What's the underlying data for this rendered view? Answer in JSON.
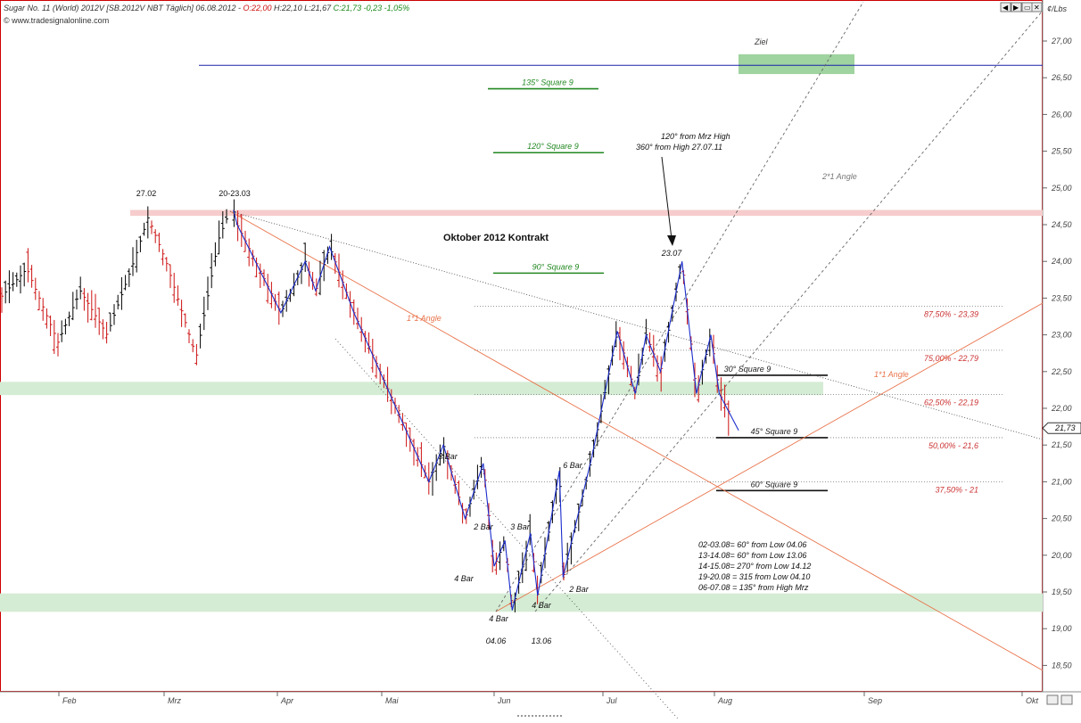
{
  "header": {
    "title": "Sugar No. 11 (World) 2012V [SB.2012V NBT Täglich] 06.08.2012 -",
    "ohlc_open": "O:22,00",
    "ohlc_high_low": "H:22,10 L:21,67",
    "ohlc_close": "C:21,73 -0,23 -1,05%",
    "source": "© www.tradesignalonline.com",
    "unit": "¢/Lbs",
    "window_buttons": [
      "◀",
      "▶",
      "▭",
      "✕"
    ]
  },
  "colors": {
    "bull_bar": "#000000",
    "bear_bar": "#cc1111",
    "zigzag": "#1a2ccc",
    "angle_line": "#e8734a",
    "green_zone": "#d4ecd4",
    "red_zone": "#f6cccc",
    "target_box": "#9fd39f",
    "fib_line": "#cc3333",
    "square9_label": "#228822",
    "border": "#cc0000"
  },
  "chart_data": {
    "type": "ohlc",
    "title": "Oktober 2012 Kontrakt",
    "y_unit": "¢/Lbs",
    "ylim": [
      18.2,
      27.4
    ],
    "y_ticks": [
      "18,50",
      "19,00",
      "19,50",
      "20,00",
      "20,50",
      "21,00",
      "21,50",
      "22,00",
      "22,50",
      "23,00",
      "23,50",
      "24,00",
      "24,50",
      "25,00",
      "25,50",
      "26,00",
      "26,50",
      "27,00"
    ],
    "x_ticks": [
      "Feb",
      "Mrz",
      "Apr",
      "Mai",
      "Jun",
      "Jul",
      "Aug",
      "Sep",
      "Okt"
    ],
    "last_price": "21,73",
    "zones": [
      {
        "name": "resistance-zone",
        "from": 24.62,
        "to": 24.7,
        "color": "red"
      },
      {
        "name": "mid-zone",
        "from": 22.18,
        "to": 22.36,
        "color": "green"
      },
      {
        "name": "support-zone",
        "from": 19.23,
        "to": 19.48,
        "color": "green"
      }
    ],
    "target": {
      "label": "Ziel",
      "level": 26.67
    },
    "fib_levels": [
      {
        "label": "87,50% - 23,39",
        "value": 23.39
      },
      {
        "label": "75,00% - 22,79",
        "value": 22.79
      },
      {
        "label": "62,50% - 22,19",
        "value": 22.19
      },
      {
        "label": "50,00% - 21,6",
        "value": 21.6
      },
      {
        "label": "37,50% - 21",
        "value": 21.0
      }
    ],
    "square9_levels": [
      {
        "label": "135° Square 9",
        "value": 26.35
      },
      {
        "label": "120° Square 9",
        "value": 25.48
      },
      {
        "label": "90° Square 9",
        "value": 23.84
      },
      {
        "label": "30° Square 9",
        "value": 22.45
      },
      {
        "label": "45° Square 9",
        "value": 21.6
      },
      {
        "label": "60° Square 9",
        "value": 20.88
      }
    ],
    "angles": [
      "1*1 Angle",
      "1*1 Angle",
      "2*1 Angle"
    ],
    "annotations": {
      "high_mrz": "27.02",
      "high_2023": "20-23.03",
      "high_jul": "23.07",
      "arrow_note": [
        "120° from Mrz High",
        "360° from High 27.07.11"
      ],
      "low_1": "04.06",
      "low_2": "13.06",
      "bar_counts": [
        "3 Bar",
        "2 Bar",
        "4 Bar",
        "3 Bar",
        "4 Bar",
        "4 Bar",
        "6 Bar",
        "2 Bar"
      ],
      "cycle_notes": [
        "02-03.08= 60° from Low 04.06",
        "13-14.08= 60° from Low 13.06",
        "14-15.08= 270° from Low 14.12",
        "19-20.08 = 315 from Low 04.10",
        "06-07.08 = 135° from High Mrz"
      ]
    },
    "zigzag_points": [
      {
        "date": "20.03",
        "price": 24.7
      },
      {
        "date": "21.03",
        "price": 24.5
      },
      {
        "date": "02.04",
        "price": 23.3
      },
      {
        "date": "09.04",
        "price": 24.0
      },
      {
        "date": "12.04",
        "price": 23.6
      },
      {
        "date": "16.04",
        "price": 24.2
      },
      {
        "date": "23.04",
        "price": 23.3
      },
      {
        "date": "14.05",
        "price": 21.0
      },
      {
        "date": "18.05",
        "price": 21.5
      },
      {
        "date": "24.05",
        "price": 20.5
      },
      {
        "date": "29.05",
        "price": 21.25
      },
      {
        "date": "01.06",
        "price": 19.85
      },
      {
        "date": "04.06",
        "price": 20.2
      },
      {
        "date": "06.06",
        "price": 19.25
      },
      {
        "date": "11.06",
        "price": 20.3
      },
      {
        "date": "13.06",
        "price": 19.45
      },
      {
        "date": "19.06",
        "price": 21.15
      },
      {
        "date": "20.06",
        "price": 19.7
      },
      {
        "date": "28.06",
        "price": 21.35
      },
      {
        "date": "05.07",
        "price": 23.05
      },
      {
        "date": "10.07",
        "price": 22.2
      },
      {
        "date": "13.07",
        "price": 23.0
      },
      {
        "date": "17.07",
        "price": 22.5
      },
      {
        "date": "23.07",
        "price": 24.0
      },
      {
        "date": "27.07",
        "price": 22.2
      },
      {
        "date": "31.07",
        "price": 23.0
      },
      {
        "date": "02.08",
        "price": 22.2
      },
      {
        "date": "06.08",
        "price": 21.7
      }
    ]
  }
}
